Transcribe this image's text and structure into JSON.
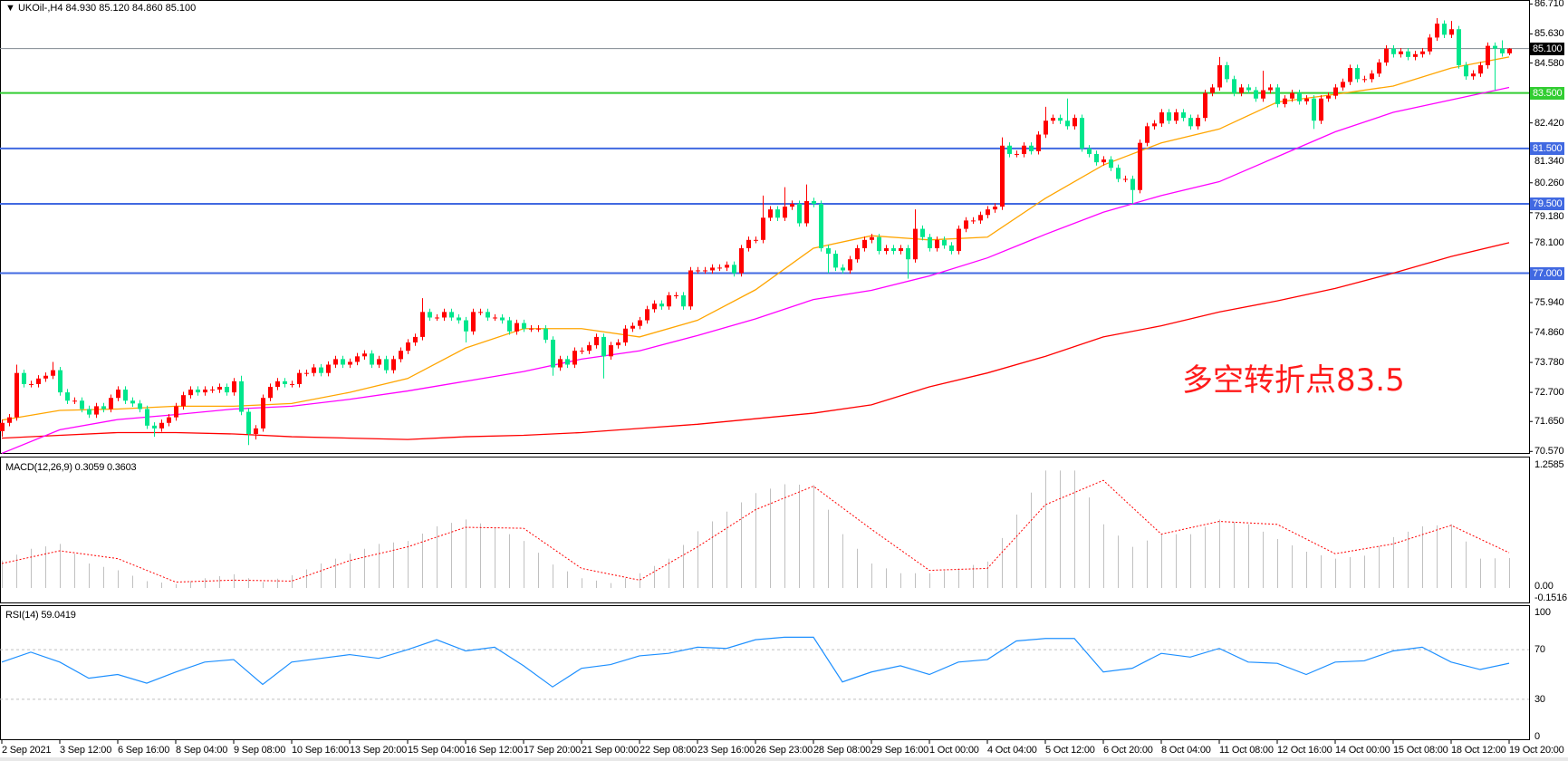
{
  "header": {
    "symbol": "UKOil-,H4",
    "ohlc_text": "84.930 85.120 84.860 85.100",
    "menu_icon": "triangle-down-icon"
  },
  "annotation": "多空转折点83.5",
  "colors": {
    "bull": "#ff0000",
    "bear": "#00e68c",
    "ma_fast": "#ffa500",
    "ma_mid": "#ff00ff",
    "ma_slow": "#ff0000",
    "support": "#4169e1",
    "pivot": "#32cd32",
    "price_line": "#808890",
    "macd_hist": "#c0c0c0",
    "macd_signal": "#ff0000",
    "rsi": "#1e90ff"
  },
  "levels": [
    {
      "value": 85.1,
      "label": "85.100",
      "kind": "current"
    },
    {
      "value": 83.5,
      "label": "83.500",
      "kind": "pivot"
    },
    {
      "value": 81.5,
      "label": "81.500",
      "kind": "support"
    },
    {
      "value": 79.5,
      "label": "79.500",
      "kind": "support"
    },
    {
      "value": 77.0,
      "label": "77.000",
      "kind": "support"
    }
  ],
  "price_axis": [
    "86.710",
    "85.630",
    "84.580",
    "82.420",
    "81.340",
    "80.260",
    "79.180",
    "78.100",
    "75.940",
    "74.860",
    "73.780",
    "72.700",
    "71.650",
    "70.570"
  ],
  "time_axis": [
    "2 Sep 2021",
    "3 Sep 12:00",
    "6 Sep 16:00",
    "8 Sep 04:00",
    "9 Sep 08:00",
    "10 Sep 16:00",
    "13 Sep 20:00",
    "15 Sep 04:00",
    "16 Sep 12:00",
    "17 Sep 20:00",
    "21 Sep 00:00",
    "22 Sep 08:00",
    "23 Sep 16:00",
    "26 Sep 23:00",
    "28 Sep 08:00",
    "29 Sep 16:00",
    "1 Oct 00:00",
    "4 Oct 04:00",
    "5 Oct 12:00",
    "6 Oct 20:00",
    "8 Oct 04:00",
    "11 Oct 08:00",
    "12 Oct 16:00",
    "14 Oct 00:00",
    "15 Oct 08:00",
    "18 Oct 12:00",
    "19 Oct 20:00"
  ],
  "macd": {
    "label": "MACD(12,26,9) 0.3059 0.3603",
    "axis": [
      "1.2585",
      "0.00",
      "-0.1516"
    ]
  },
  "rsi": {
    "label": "RSI(14) 59.0419",
    "axis": [
      "100",
      "70",
      "30",
      "0"
    ],
    "levels": [
      70,
      30
    ]
  },
  "chart_data": {
    "type": "candlestick",
    "title": "UKOil-,H4",
    "ylim": [
      70.57,
      86.71
    ],
    "first_open": 71.3,
    "close": [
      71.6,
      71.8,
      73.4,
      73.0,
      73.0,
      73.2,
      73.3,
      73.5,
      72.7,
      72.4,
      72.4,
      72.1,
      71.9,
      72.2,
      72.1,
      72.5,
      72.8,
      72.4,
      72.3,
      72.1,
      71.5,
      71.4,
      71.6,
      71.8,
      72.2,
      72.6,
      72.8,
      72.7,
      72.8,
      72.8,
      72.9,
      72.7,
      73.1,
      72.0,
      71.2,
      71.4,
      72.5,
      72.9,
      73.1,
      73.0,
      73.0,
      73.4,
      73.4,
      73.6,
      73.4,
      73.7,
      73.9,
      73.7,
      73.8,
      74.0,
      74.1,
      73.7,
      73.9,
      73.5,
      73.9,
      74.2,
      74.5,
      74.7,
      75.6,
      75.4,
      75.4,
      75.6,
      75.4,
      75.3,
      74.9,
      75.6,
      75.6,
      75.4,
      75.4,
      75.3,
      74.9,
      75.2,
      75.0,
      75.0,
      75.0,
      74.6,
      73.6,
      73.9,
      73.7,
      74.2,
      74.2,
      74.4,
      74.7,
      74.0,
      74.4,
      74.5,
      75.0,
      75.1,
      75.3,
      75.7,
      75.9,
      75.8,
      76.2,
      76.2,
      75.8,
      77.1,
      77.1,
      77.1,
      77.2,
      77.2,
      77.3,
      77.0,
      77.9,
      78.2,
      78.2,
      79.0,
      79.3,
      79.0,
      79.4,
      79.5,
      78.8,
      79.6,
      79.5,
      77.9,
      77.7,
      77.2,
      77.1,
      77.5,
      77.9,
      78.2,
      78.3,
      77.8,
      77.9,
      77.8,
      77.9,
      77.5,
      78.6,
      78.3,
      77.9,
      78.2,
      78.0,
      77.8,
      78.6,
      78.9,
      78.9,
      79.1,
      79.3,
      79.4,
      81.6,
      81.3,
      81.3,
      81.6,
      81.4,
      82.0,
      82.5,
      82.6,
      82.5,
      82.3,
      82.6,
      81.5,
      81.3,
      81.0,
      81.1,
      80.8,
      80.4,
      80.4,
      80.0,
      81.7,
      82.3,
      82.4,
      82.8,
      82.5,
      82.8,
      82.6,
      82.3,
      82.6,
      83.5,
      83.7,
      84.5,
      84.0,
      83.5,
      83.7,
      83.6,
      83.3,
      83.6,
      83.7,
      83.1,
      83.3,
      83.5,
      83.2,
      83.3,
      82.5,
      83.3,
      83.4,
      83.7,
      83.9,
      84.4,
      84.0,
      84.0,
      84.2,
      84.6,
      85.1,
      84.9,
      85.0,
      84.8,
      84.9,
      85.0,
      85.5,
      86.0,
      85.6,
      85.8,
      84.5,
      84.1,
      84.2,
      84.5,
      85.2,
      85.1,
      84.93,
      85.1
    ],
    "wick_extremes": [
      [
        0,
        null,
        71.1
      ],
      [
        2,
        73.7,
        null
      ],
      [
        7,
        73.8,
        null
      ],
      [
        21,
        null,
        71.1
      ],
      [
        33,
        73.3,
        null
      ],
      [
        34,
        null,
        70.8
      ],
      [
        35,
        null,
        71.0
      ],
      [
        58,
        76.1,
        null
      ],
      [
        64,
        null,
        74.5
      ],
      [
        76,
        null,
        73.3
      ],
      [
        83,
        null,
        73.2
      ],
      [
        105,
        79.8,
        null
      ],
      [
        108,
        80.1,
        null
      ],
      [
        111,
        80.2,
        null
      ],
      [
        114,
        null,
        77.0
      ],
      [
        125,
        null,
        76.8
      ],
      [
        126,
        79.3,
        null
      ],
      [
        138,
        81.9,
        null
      ],
      [
        144,
        83.0,
        null
      ],
      [
        147,
        83.3,
        null
      ],
      [
        156,
        null,
        79.5
      ],
      [
        168,
        84.8,
        null
      ],
      [
        174,
        84.3,
        null
      ],
      [
        181,
        null,
        82.2
      ],
      [
        198,
        86.2,
        null
      ],
      [
        200,
        86.1,
        null
      ],
      [
        206,
        null,
        83.6
      ],
      [
        207,
        85.4,
        null
      ],
      [
        208,
        85.12,
        84.86
      ]
    ],
    "ma_sample_step_bars": 8,
    "ma_fast": [
      71.7,
      72.05,
      72.1,
      72.2,
      72.2,
      72.3,
      72.7,
      73.2,
      74.3,
      75.0,
      75.0,
      74.7,
      75.3,
      76.4,
      77.9,
      78.35,
      78.2,
      78.3,
      79.7,
      80.9,
      81.7,
      82.2,
      83.17,
      83.45,
      83.75,
      84.4,
      84.8
    ],
    "ma_mid": [
      70.5,
      71.35,
      71.72,
      71.9,
      72.1,
      72.2,
      72.45,
      72.75,
      73.1,
      73.45,
      73.9,
      74.2,
      74.75,
      75.35,
      76.05,
      76.38,
      76.9,
      77.55,
      78.4,
      79.2,
      79.8,
      80.3,
      81.2,
      82.1,
      82.8,
      83.25,
      83.7
    ],
    "ma_slow": [
      71.05,
      71.15,
      71.25,
      71.25,
      71.2,
      71.1,
      71.05,
      71.0,
      71.1,
      71.15,
      71.25,
      71.4,
      71.55,
      71.75,
      71.95,
      72.25,
      72.9,
      73.4,
      74.0,
      74.7,
      75.1,
      75.6,
      76.0,
      76.45,
      77.0,
      77.6,
      78.1
    ],
    "macd_hist_step_bars": 4,
    "macd_hist": [
      0.28,
      0.4,
      0.45,
      0.25,
      0.18,
      0.07,
      0.04,
      0.1,
      0.14,
      0.06,
      0.13,
      0.25,
      0.35,
      0.45,
      0.48,
      0.63,
      0.7,
      0.62,
      0.48,
      0.24,
      0.1,
      0.05,
      0.15,
      0.3,
      0.58,
      0.78,
      0.97,
      1.06,
      1.05,
      0.55,
      0.25,
      0.15,
      0.15,
      0.2,
      0.27,
      0.75,
      1.2,
      1.2,
      0.65,
      0.42,
      0.55,
      0.55,
      0.7,
      0.65,
      0.5,
      0.37,
      0.3,
      0.33,
      0.52,
      0.63,
      0.65,
      0.3,
      0.3059
    ],
    "macd_signal_step_bars": 8,
    "macd_signal": [
      0.25,
      0.38,
      0.3,
      0.06,
      0.08,
      0.07,
      0.28,
      0.42,
      0.62,
      0.61,
      0.2,
      0.08,
      0.42,
      0.8,
      1.04,
      0.6,
      0.18,
      0.2,
      0.85,
      1.1,
      0.55,
      0.68,
      0.65,
      0.35,
      0.45,
      0.64,
      0.3603
    ],
    "macd_ylim": [
      -0.1516,
      1.2585
    ],
    "rsi_step_bars": 4,
    "rsi_values": [
      60,
      68,
      60,
      47,
      50,
      43,
      52,
      60,
      62,
      42,
      60,
      63,
      66,
      63,
      70,
      78,
      69,
      72,
      57,
      40,
      55,
      58,
      65,
      67,
      72,
      71,
      78,
      80,
      80,
      44,
      52,
      57,
      50,
      60,
      62,
      77,
      79,
      79,
      52,
      55,
      67,
      64,
      71,
      60,
      59,
      50,
      60,
      61,
      69,
      72,
      60,
      54,
      59.0419
    ],
    "rsi_ylim": [
      0,
      100
    ]
  }
}
